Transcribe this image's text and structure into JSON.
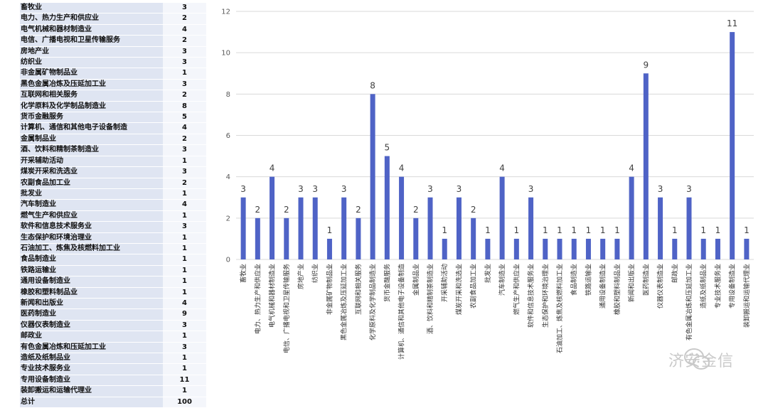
{
  "table": {
    "rows": [
      {
        "name": "畜牧业",
        "value": "3"
      },
      {
        "name": "电力、热力生产和供应业",
        "value": "2"
      },
      {
        "name": "电气机械和器材制造业",
        "value": "4"
      },
      {
        "name": "电信、广播电视和卫星传输服务",
        "value": "2"
      },
      {
        "name": "房地产业",
        "value": "3"
      },
      {
        "name": "纺织业",
        "value": "3"
      },
      {
        "name": "非金属矿物制品业",
        "value": "1"
      },
      {
        "name": "黑色金属冶炼及压延加工业",
        "value": "3"
      },
      {
        "name": "互联网和相关服务",
        "value": "2"
      },
      {
        "name": "化学原料及化学制品制造业",
        "value": "8"
      },
      {
        "name": "货币金融服务",
        "value": "5"
      },
      {
        "name": "计算机、通信和其他电子设备制造",
        "value": "4"
      },
      {
        "name": "金属制品业",
        "value": "2"
      },
      {
        "name": "酒、饮料和精制茶制造业",
        "value": "3"
      },
      {
        "name": "开采辅助活动",
        "value": "1"
      },
      {
        "name": "煤炭开采和洗选业",
        "value": "3"
      },
      {
        "name": "农副食品加工业",
        "value": "2"
      },
      {
        "name": "批发业",
        "value": "1"
      },
      {
        "name": "汽车制造业",
        "value": "4"
      },
      {
        "name": "燃气生产和供应业",
        "value": "1"
      },
      {
        "name": "软件和信息技术服务业",
        "value": "3"
      },
      {
        "name": "生态保护和环境治理业",
        "value": "1"
      },
      {
        "name": "石油加工、炼焦及核燃料加工业",
        "value": "1"
      },
      {
        "name": "食品制造业",
        "value": "1"
      },
      {
        "name": "铁路运输业",
        "value": "1"
      },
      {
        "name": "通用设备制造业",
        "value": "1"
      },
      {
        "name": "橡胶和塑料制品业",
        "value": "1"
      },
      {
        "name": "新闻和出版业",
        "value": "4"
      },
      {
        "name": "医药制造业",
        "value": "9"
      },
      {
        "name": "仪器仪表制造业",
        "value": "3"
      },
      {
        "name": "邮政业",
        "value": "1"
      },
      {
        "name": "有色金属冶炼和压延加工业",
        "value": "3"
      },
      {
        "name": "造纸及纸制品业",
        "value": "1"
      },
      {
        "name": "专业技术服务业",
        "value": "1"
      },
      {
        "name": "专用设备制造业",
        "value": "11"
      },
      {
        "name": "装卸搬运和运输代理业",
        "value": "1"
      },
      {
        "name": "总计",
        "value": "100"
      }
    ]
  },
  "chart_data": {
    "type": "bar",
    "categories": [
      "畜牧业",
      "电力、热力生产和供应业",
      "电气机械和器材制造业",
      "电信、广播电视和卫星传输服务",
      "房地产业",
      "纺织业",
      "非金属矿物制品业",
      "黑色金属冶炼及压延加工业",
      "互联网和相关服务",
      "化学原料及化学制品制造业",
      "货币金融服务",
      "计算机、通信和其他电子设备制造",
      "金属制品业",
      "酒、饮料和精制茶制造业",
      "开采辅助活动",
      "煤炭开采和洗选业",
      "农副食品加工业",
      "批发业",
      "汽车制造业",
      "燃气生产和供应业",
      "软件和信息技术服务业",
      "生态保护和环境治理业",
      "石油加工、炼焦及核燃料加工业",
      "食品制造业",
      "铁路运输业",
      "通用设备制造业",
      "橡胶和塑料制品业",
      "新闻和出版业",
      "医药制造业",
      "仪器仪表制造业",
      "邮政业",
      "有色金属冶炼和压延加工业",
      "造纸及纸制品业",
      "专业技术服务业",
      "专用设备制造业",
      "装卸搬运和运输代理业"
    ],
    "values": [
      3,
      2,
      4,
      2,
      3,
      3,
      1,
      3,
      2,
      8,
      5,
      4,
      2,
      3,
      1,
      3,
      2,
      1,
      4,
      1,
      3,
      1,
      1,
      1,
      1,
      1,
      1,
      4,
      9,
      3,
      1,
      3,
      1,
      1,
      11,
      1
    ],
    "yticks": [
      0,
      2,
      4,
      6,
      8,
      10,
      12
    ],
    "ylim": [
      0,
      12
    ],
    "grid": true,
    "title": "",
    "xlabel": "",
    "ylabel": "",
    "bar_color": "#4f63c6"
  },
  "watermark": {
    "text": "济安金信"
  }
}
